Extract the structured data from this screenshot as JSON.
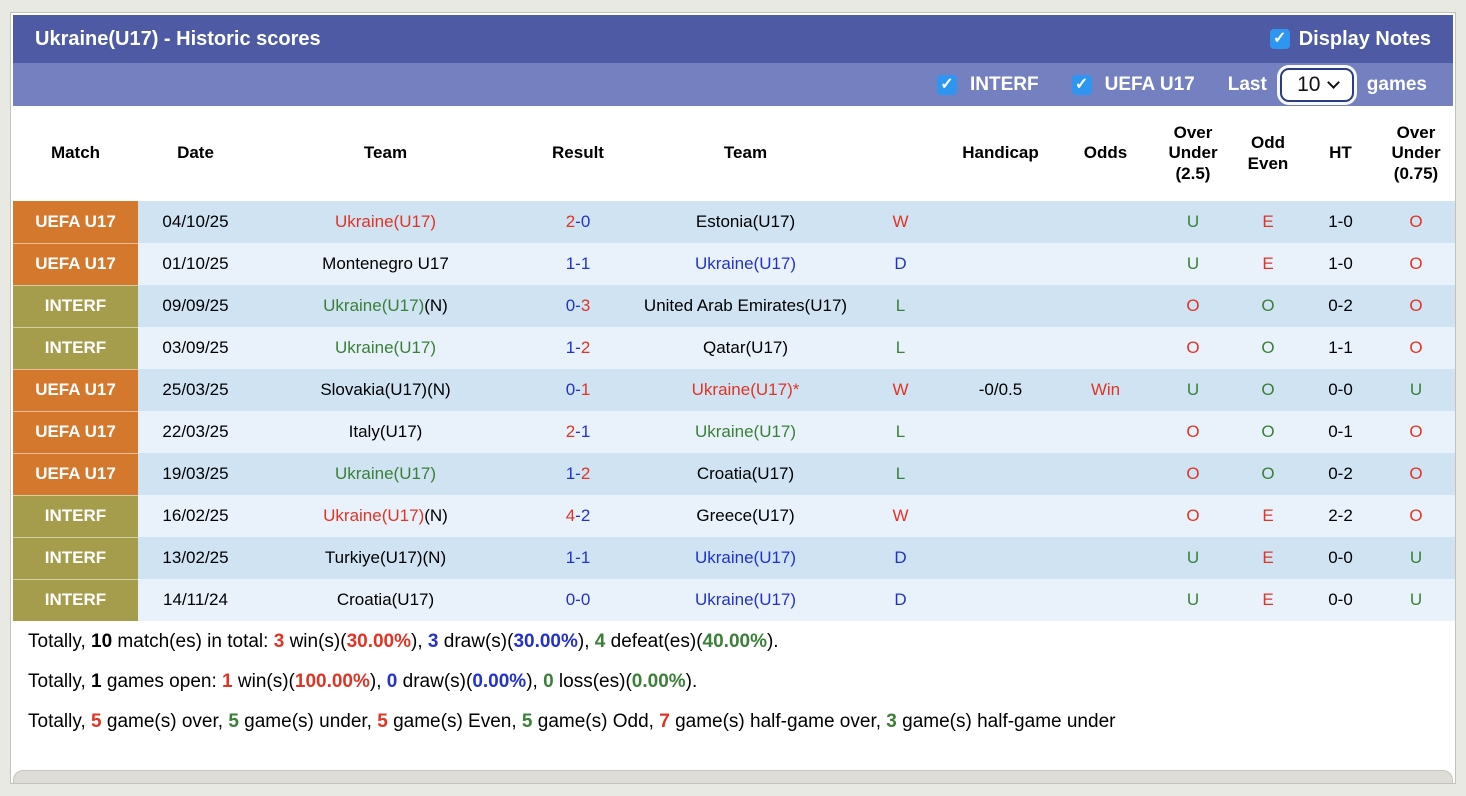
{
  "colors": {
    "red": "#e03425",
    "blue": "#2233cc",
    "green": "#3a8038",
    "orange": "#d4782e",
    "olive": "#a59d4b",
    "header": "#4e5aa3",
    "subheader": "#7580c1",
    "rowdark": "#cfe3f2",
    "rowlight": "#e9f2fa",
    "checkbox": "#2e96f0",
    "pagebg": "#e9e9e4",
    "strip": "#dddcd6"
  },
  "header": {
    "title": "Ukraine(U17) - Historic scores",
    "display_notes_label": "Display Notes",
    "display_notes_checked": true
  },
  "filter_bar": {
    "interf_label": "INTERF",
    "interf_checked": true,
    "uefa_label": "UEFA U17",
    "uefa_checked": true,
    "last_label": "Last",
    "games_count": "10",
    "games_label": "games"
  },
  "table": {
    "columns": [
      "Match",
      "Date",
      "Team",
      "Result",
      "Team",
      "",
      "Handicap",
      "Odds",
      "Over\nUnder\n(2.5)",
      "Odd\nEven",
      "HT",
      "Over\nUnder\n(0.75)"
    ],
    "rows": [
      {
        "league": {
          "text": "UEFA U17",
          "type": "uefa"
        },
        "date": "04/10/25",
        "home": [
          {
            "t": "Ukraine(U17)",
            "c": "red"
          }
        ],
        "result": [
          {
            "t": "2",
            "c": "red"
          },
          {
            "t": "-0",
            "c": "blue"
          }
        ],
        "away": [
          {
            "t": "Estonia(U17)",
            "c": "black"
          }
        ],
        "wdl": {
          "t": "W",
          "c": "red"
        },
        "handicap": "",
        "odds": {
          "t": "",
          "c": "red"
        },
        "ou25": {
          "t": "U",
          "c": "green"
        },
        "oe": {
          "t": "E",
          "c": "red"
        },
        "ht": "1-0",
        "ou075": {
          "t": "O",
          "c": "red"
        }
      },
      {
        "league": {
          "text": "UEFA U17",
          "type": "uefa"
        },
        "date": "01/10/25",
        "home": [
          {
            "t": "Montenegro U17",
            "c": "black"
          }
        ],
        "result": [
          {
            "t": "1-1",
            "c": "blue"
          }
        ],
        "away": [
          {
            "t": "Ukraine(U17)",
            "c": "blue"
          }
        ],
        "wdl": {
          "t": "D",
          "c": "blue"
        },
        "handicap": "",
        "odds": {
          "t": "",
          "c": "red"
        },
        "ou25": {
          "t": "U",
          "c": "green"
        },
        "oe": {
          "t": "E",
          "c": "red"
        },
        "ht": "1-0",
        "ou075": {
          "t": "O",
          "c": "red"
        }
      },
      {
        "league": {
          "text": "INTERF",
          "type": "interf"
        },
        "date": "09/09/25",
        "home": [
          {
            "t": "Ukraine(U17)",
            "c": "green"
          },
          {
            "t": "(N)",
            "c": "black"
          }
        ],
        "result": [
          {
            "t": "0-",
            "c": "blue"
          },
          {
            "t": "3",
            "c": "red"
          }
        ],
        "away": [
          {
            "t": "United Arab Emirates(U17)",
            "c": "black"
          }
        ],
        "wdl": {
          "t": "L",
          "c": "green"
        },
        "handicap": "",
        "odds": {
          "t": "",
          "c": "red"
        },
        "ou25": {
          "t": "O",
          "c": "red"
        },
        "oe": {
          "t": "O",
          "c": "green"
        },
        "ht": "0-2",
        "ou075": {
          "t": "O",
          "c": "red"
        }
      },
      {
        "league": {
          "text": "INTERF",
          "type": "interf"
        },
        "date": "03/09/25",
        "home": [
          {
            "t": "Ukraine(U17)",
            "c": "green"
          }
        ],
        "result": [
          {
            "t": "1-",
            "c": "blue"
          },
          {
            "t": "2",
            "c": "red"
          }
        ],
        "away": [
          {
            "t": "Qatar(U17)",
            "c": "black"
          }
        ],
        "wdl": {
          "t": "L",
          "c": "green"
        },
        "handicap": "",
        "odds": {
          "t": "",
          "c": "red"
        },
        "ou25": {
          "t": "O",
          "c": "red"
        },
        "oe": {
          "t": "O",
          "c": "green"
        },
        "ht": "1-1",
        "ou075": {
          "t": "O",
          "c": "red"
        }
      },
      {
        "league": {
          "text": "UEFA U17",
          "type": "uefa"
        },
        "date": "25/03/25",
        "home": [
          {
            "t": "Slovakia(U17)(N)",
            "c": "black"
          }
        ],
        "result": [
          {
            "t": "0-",
            "c": "blue"
          },
          {
            "t": "1",
            "c": "red"
          }
        ],
        "away": [
          {
            "t": "Ukraine(U17)*",
            "c": "red"
          }
        ],
        "wdl": {
          "t": "W",
          "c": "red"
        },
        "handicap": "-0/0.5",
        "odds": {
          "t": "Win",
          "c": "red"
        },
        "ou25": {
          "t": "U",
          "c": "green"
        },
        "oe": {
          "t": "O",
          "c": "green"
        },
        "ht": "0-0",
        "ou075": {
          "t": "U",
          "c": "green"
        }
      },
      {
        "league": {
          "text": "UEFA U17",
          "type": "uefa"
        },
        "date": "22/03/25",
        "home": [
          {
            "t": "Italy(U17)",
            "c": "black"
          }
        ],
        "result": [
          {
            "t": "2",
            "c": "red"
          },
          {
            "t": "-1",
            "c": "blue"
          }
        ],
        "away": [
          {
            "t": "Ukraine(U17)",
            "c": "green"
          }
        ],
        "wdl": {
          "t": "L",
          "c": "green"
        },
        "handicap": "",
        "odds": {
          "t": "",
          "c": "red"
        },
        "ou25": {
          "t": "O",
          "c": "red"
        },
        "oe": {
          "t": "O",
          "c": "green"
        },
        "ht": "0-1",
        "ou075": {
          "t": "O",
          "c": "red"
        }
      },
      {
        "league": {
          "text": "UEFA U17",
          "type": "uefa"
        },
        "date": "19/03/25",
        "home": [
          {
            "t": "Ukraine(U17)",
            "c": "green"
          }
        ],
        "result": [
          {
            "t": "1-",
            "c": "blue"
          },
          {
            "t": "2",
            "c": "red"
          }
        ],
        "away": [
          {
            "t": "Croatia(U17)",
            "c": "black"
          }
        ],
        "wdl": {
          "t": "L",
          "c": "green"
        },
        "handicap": "",
        "odds": {
          "t": "",
          "c": "red"
        },
        "ou25": {
          "t": "O",
          "c": "red"
        },
        "oe": {
          "t": "O",
          "c": "green"
        },
        "ht": "0-2",
        "ou075": {
          "t": "O",
          "c": "red"
        }
      },
      {
        "league": {
          "text": "INTERF",
          "type": "interf"
        },
        "date": "16/02/25",
        "home": [
          {
            "t": "Ukraine(U17)",
            "c": "red"
          },
          {
            "t": "(N)",
            "c": "black"
          }
        ],
        "result": [
          {
            "t": "4",
            "c": "red"
          },
          {
            "t": "-2",
            "c": "blue"
          }
        ],
        "away": [
          {
            "t": "Greece(U17)",
            "c": "black"
          }
        ],
        "wdl": {
          "t": "W",
          "c": "red"
        },
        "handicap": "",
        "odds": {
          "t": "",
          "c": "red"
        },
        "ou25": {
          "t": "O",
          "c": "red"
        },
        "oe": {
          "t": "E",
          "c": "red"
        },
        "ht": "2-2",
        "ou075": {
          "t": "O",
          "c": "red"
        }
      },
      {
        "league": {
          "text": "INTERF",
          "type": "interf"
        },
        "date": "13/02/25",
        "home": [
          {
            "t": "Turkiye(U17)(N)",
            "c": "black"
          }
        ],
        "result": [
          {
            "t": "1-1",
            "c": "blue"
          }
        ],
        "away": [
          {
            "t": "Ukraine(U17)",
            "c": "blue"
          }
        ],
        "wdl": {
          "t": "D",
          "c": "blue"
        },
        "handicap": "",
        "odds": {
          "t": "",
          "c": "red"
        },
        "ou25": {
          "t": "U",
          "c": "green"
        },
        "oe": {
          "t": "E",
          "c": "red"
        },
        "ht": "0-0",
        "ou075": {
          "t": "U",
          "c": "green"
        }
      },
      {
        "league": {
          "text": "INTERF",
          "type": "interf"
        },
        "date": "14/11/24",
        "home": [
          {
            "t": "Croatia(U17)",
            "c": "black"
          }
        ],
        "result": [
          {
            "t": "0-0",
            "c": "blue"
          }
        ],
        "away": [
          {
            "t": "Ukraine(U17)",
            "c": "blue"
          }
        ],
        "wdl": {
          "t": "D",
          "c": "blue"
        },
        "handicap": "",
        "odds": {
          "t": "",
          "c": "red"
        },
        "ou25": {
          "t": "U",
          "c": "green"
        },
        "oe": {
          "t": "E",
          "c": "red"
        },
        "ht": "0-0",
        "ou075": {
          "t": "U",
          "c": "green"
        }
      }
    ]
  },
  "summary": [
    [
      {
        "t": "Totally, "
      },
      {
        "t": "10",
        "b": true
      },
      {
        "t": " match(es) in total: "
      },
      {
        "t": "3",
        "b": true,
        "c": "red"
      },
      {
        "t": " win(s)("
      },
      {
        "t": "30.00%",
        "b": true,
        "c": "red"
      },
      {
        "t": "), "
      },
      {
        "t": "3",
        "b": true,
        "c": "blue"
      },
      {
        "t": " draw(s)("
      },
      {
        "t": "30.00%",
        "b": true,
        "c": "blue"
      },
      {
        "t": "), "
      },
      {
        "t": "4",
        "b": true,
        "c": "green"
      },
      {
        "t": " defeat(es)("
      },
      {
        "t": "40.00%",
        "b": true,
        "c": "green"
      },
      {
        "t": ")."
      }
    ],
    [
      {
        "t": "Totally, "
      },
      {
        "t": "1",
        "b": true
      },
      {
        "t": " games open: "
      },
      {
        "t": "1",
        "b": true,
        "c": "red"
      },
      {
        "t": " win(s)("
      },
      {
        "t": "100.00%",
        "b": true,
        "c": "red"
      },
      {
        "t": "), "
      },
      {
        "t": "0",
        "b": true,
        "c": "blue"
      },
      {
        "t": " draw(s)("
      },
      {
        "t": "0.00%",
        "b": true,
        "c": "blue"
      },
      {
        "t": "), "
      },
      {
        "t": "0",
        "b": true,
        "c": "green"
      },
      {
        "t": " loss(es)("
      },
      {
        "t": "0.00%",
        "b": true,
        "c": "green"
      },
      {
        "t": ")."
      }
    ],
    [
      {
        "t": "Totally, "
      },
      {
        "t": "5",
        "b": true,
        "c": "red"
      },
      {
        "t": " game(s) over, "
      },
      {
        "t": "5",
        "b": true,
        "c": "green"
      },
      {
        "t": " game(s) under, "
      },
      {
        "t": "5",
        "b": true,
        "c": "red"
      },
      {
        "t": " game(s) Even, "
      },
      {
        "t": "5",
        "b": true,
        "c": "green"
      },
      {
        "t": " game(s) Odd, "
      },
      {
        "t": "7",
        "b": true,
        "c": "red"
      },
      {
        "t": " game(s) half-game over, "
      },
      {
        "t": "3",
        "b": true,
        "c": "green"
      },
      {
        "t": " game(s) half-game under"
      }
    ]
  ]
}
